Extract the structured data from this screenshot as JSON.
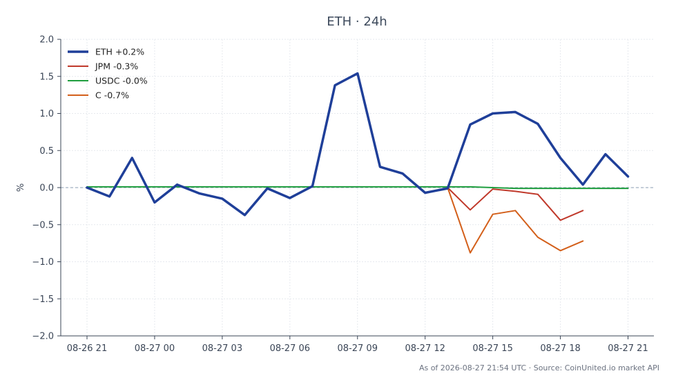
{
  "chart_data": {
    "type": "line",
    "title": "ETH · 24h",
    "ylabel": "%",
    "xlabel": "",
    "ylim": [
      -2.0,
      2.0
    ],
    "yticks": [
      -2.0,
      -1.5,
      -1.0,
      -0.5,
      0.0,
      0.5,
      1.0,
      1.5,
      2.0
    ],
    "ytick_labels": [
      "−2.0",
      "−1.5",
      "−1.0",
      "−0.5",
      "0.0",
      "0.5",
      "1.0",
      "1.5",
      "2.0"
    ],
    "x": [
      "08-26 21",
      "08-26 22",
      "08-26 23",
      "08-27 00",
      "08-27 01",
      "08-27 02",
      "08-27 03",
      "08-27 04",
      "08-27 05",
      "08-27 06",
      "08-27 07",
      "08-27 08",
      "08-27 09",
      "08-27 10",
      "08-27 11",
      "08-27 12",
      "08-27 13",
      "08-27 14",
      "08-27 15",
      "08-27 16",
      "08-27 17",
      "08-27 18",
      "08-27 19",
      "08-27 20",
      "08-27 21"
    ],
    "xticks": [
      "08-26 21",
      "08-27 00",
      "08-27 03",
      "08-27 06",
      "08-27 09",
      "08-27 12",
      "08-27 15",
      "08-27 18",
      "08-27 21"
    ],
    "grid": true,
    "zero_line": true,
    "legend_position": "top-left",
    "series": [
      {
        "name": "ETH +0.2%",
        "color": "#1f3f99",
        "values": [
          0.0,
          -0.12,
          0.4,
          -0.2,
          0.04,
          -0.08,
          -0.15,
          -0.37,
          -0.01,
          -0.14,
          0.02,
          1.38,
          1.54,
          0.28,
          0.19,
          -0.07,
          -0.01,
          0.85,
          1.0,
          1.02,
          0.86,
          0.4,
          0.04,
          0.45,
          0.15
        ]
      },
      {
        "name": "JPM -0.3%",
        "color": "#c0392b",
        "values": [
          null,
          null,
          null,
          null,
          null,
          null,
          null,
          null,
          null,
          null,
          null,
          null,
          null,
          null,
          null,
          null,
          0.0,
          -0.3,
          -0.02,
          -0.05,
          -0.09,
          -0.44,
          -0.31,
          null,
          null
        ]
      },
      {
        "name": "USDC -0.0%",
        "color": "#1e9e3e",
        "values": [
          0.01,
          0.01,
          0.01,
          0.01,
          0.01,
          0.01,
          0.01,
          0.01,
          0.01,
          0.01,
          0.01,
          0.01,
          0.01,
          0.01,
          0.01,
          0.01,
          0.01,
          0.01,
          0.0,
          -0.01,
          -0.01,
          -0.01,
          -0.01,
          -0.01,
          -0.01
        ]
      },
      {
        "name": "C -0.7%",
        "color": "#d35f1a",
        "values": [
          null,
          null,
          null,
          null,
          null,
          null,
          null,
          null,
          null,
          null,
          null,
          null,
          null,
          null,
          null,
          null,
          0.0,
          -0.88,
          -0.36,
          -0.31,
          -0.67,
          -0.85,
          -0.72,
          null,
          null
        ]
      }
    ],
    "footer": "As of 2026-08-27 21:54 UTC · Source: CoinUnited.io market API"
  }
}
